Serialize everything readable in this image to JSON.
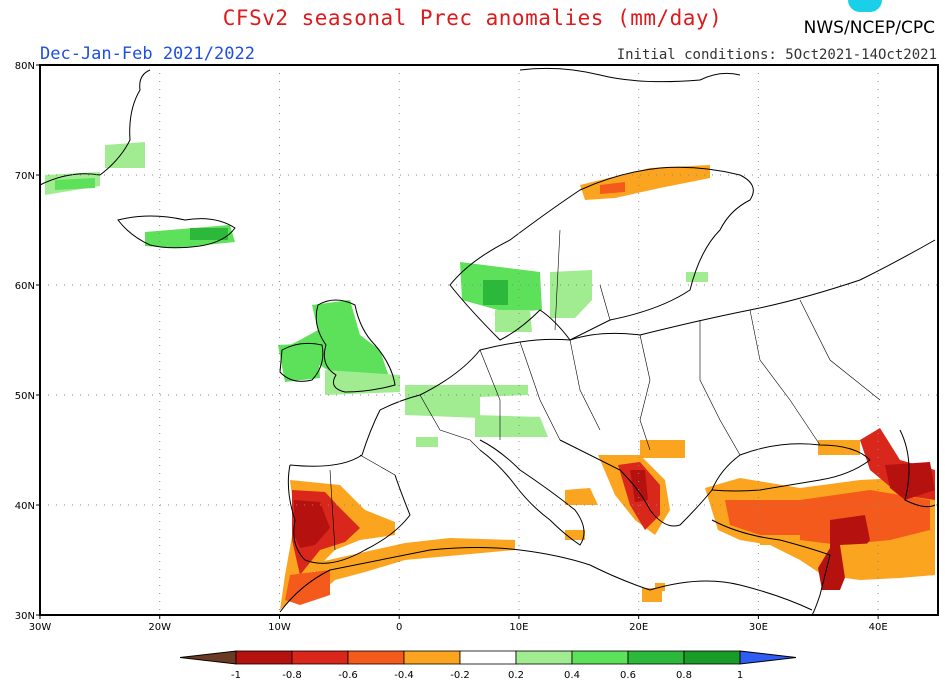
{
  "header": {
    "title": "CFSv2 seasonal Prec anomalies (mm/day)",
    "agency": "NWS/NCEP/CPC",
    "season": "Dec-Jan-Feb 2021/2022",
    "initial_conditions": "Initial conditions: 5Oct2021-14Oct2021"
  },
  "map": {
    "lon_labels": [
      "30W",
      "20W",
      "10W",
      "0",
      "10E",
      "20E",
      "30E",
      "40E"
    ],
    "lat_labels": [
      "30N",
      "40N",
      "50N",
      "60N",
      "70N",
      "80N"
    ],
    "lon_range": [
      -30,
      45
    ],
    "lat_range": [
      30,
      80
    ],
    "grid": true
  },
  "colorbar": {
    "labels": [
      "-1",
      "-0.8",
      "-0.6",
      "-0.4",
      "-0.2",
      "0.2",
      "0.4",
      "0.6",
      "0.8",
      "1"
    ],
    "colors": [
      "#6b3a24",
      "#b5120f",
      "#d9271b",
      "#f45a1c",
      "#fba420",
      "#ffffff",
      "#a1ec91",
      "#5ee15a",
      "#2cb83a",
      "#1a9a26",
      "#2f5cf2"
    ]
  },
  "anomaly_regions": [
    {
      "name": "Iberia west",
      "category": "-0.8",
      "color": "#b5120f"
    },
    {
      "name": "Iberia south",
      "category": "-0.4",
      "color": "#f45a1c"
    },
    {
      "name": "Mediterranean coast",
      "category": "-0.2",
      "color": "#fba420"
    },
    {
      "name": "Balkans",
      "category": "-0.6",
      "color": "#d9271b"
    },
    {
      "name": "Turkey",
      "category": "-0.2",
      "color": "#fba420"
    },
    {
      "name": "Middle East",
      "category": "-0.8",
      "color": "#b5120f"
    },
    {
      "name": "Northern Norway",
      "category": "-0.2",
      "color": "#fba420"
    },
    {
      "name": "British Isles",
      "category": "0.4",
      "color": "#5ee15a"
    },
    {
      "name": "Iceland",
      "category": "0.4",
      "color": "#5ee15a"
    },
    {
      "name": "Greenland",
      "category": "0.2",
      "color": "#a1ec91"
    },
    {
      "name": "Southern Scandinavia",
      "category": "0.4",
      "color": "#5ee15a"
    },
    {
      "name": "Central Europe",
      "category": "0.2",
      "color": "#a1ec91"
    }
  ]
}
